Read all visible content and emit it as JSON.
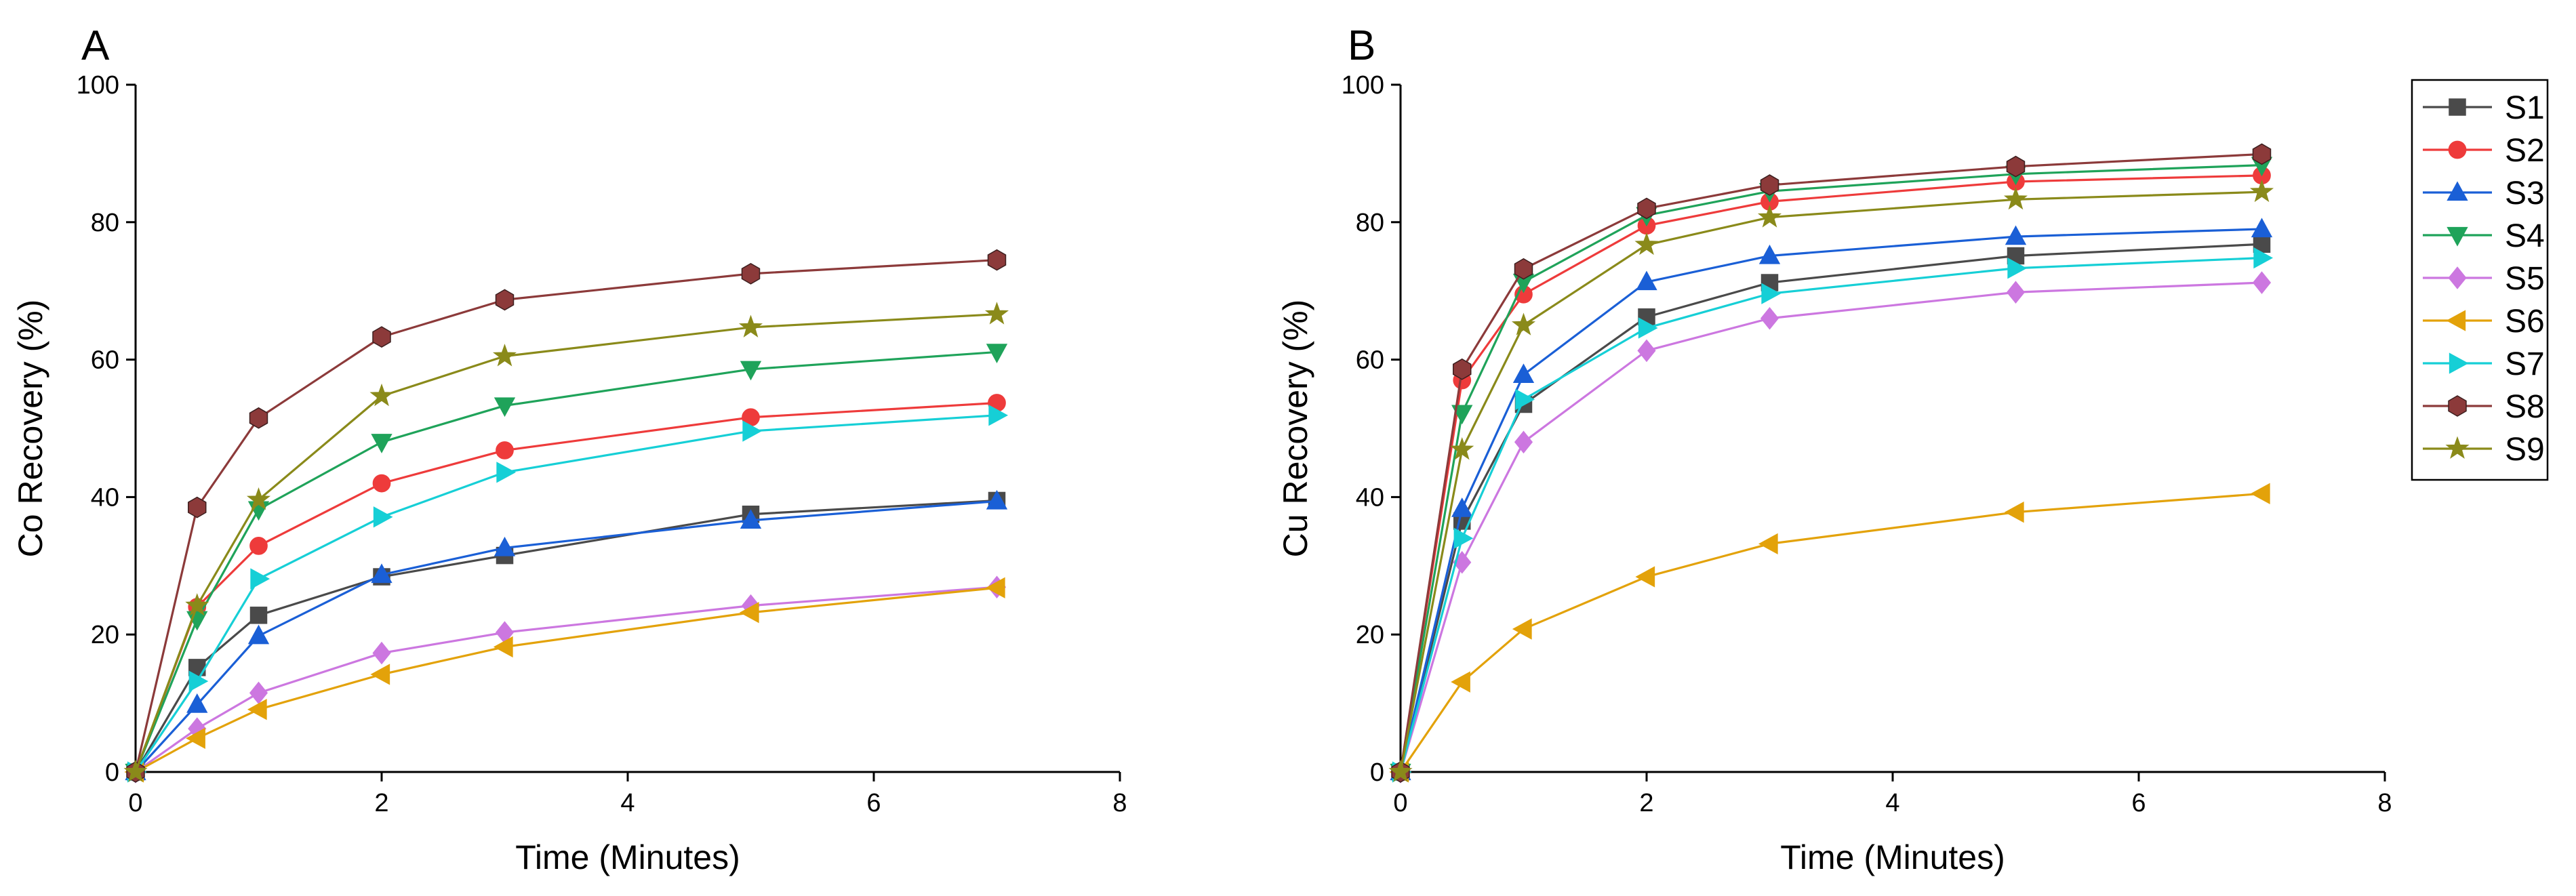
{
  "chart_data": [
    {
      "type": "line",
      "panel_label": "A",
      "xlabel": "Time (Minutes)",
      "ylabel": "Co Recovery (%)",
      "xlim": [
        0,
        8
      ],
      "ylim": [
        0,
        100
      ],
      "xticks": [
        0,
        2,
        4,
        6,
        8
      ],
      "yticks": [
        0,
        20,
        40,
        60,
        80,
        100
      ],
      "x": [
        0,
        0.5,
        1,
        2,
        3,
        5,
        7
      ],
      "series": [
        {
          "name": "S1",
          "values": [
            0,
            15.2,
            22.8,
            28.4,
            31.5,
            37.5,
            39.5
          ]
        },
        {
          "name": "S2",
          "values": [
            0,
            24.0,
            32.9,
            42.0,
            46.8,
            51.6,
            53.7
          ]
        },
        {
          "name": "S3",
          "values": [
            0,
            9.8,
            19.8,
            28.7,
            32.6,
            36.6,
            39.4
          ]
        },
        {
          "name": "S4",
          "values": [
            0,
            22.2,
            38.2,
            48.0,
            53.3,
            58.6,
            61.1
          ]
        },
        {
          "name": "S5",
          "values": [
            0,
            6.3,
            11.5,
            17.3,
            20.3,
            24.2,
            26.9
          ]
        },
        {
          "name": "S6",
          "values": [
            0,
            4.9,
            9.1,
            14.2,
            18.2,
            23.2,
            26.8
          ]
        },
        {
          "name": "S7",
          "values": [
            0,
            13.2,
            28.1,
            37.1,
            43.6,
            49.6,
            51.9
          ]
        },
        {
          "name": "S8",
          "values": [
            0,
            38.5,
            51.5,
            63.3,
            68.7,
            72.5,
            74.5
          ]
        },
        {
          "name": "S9",
          "values": [
            0,
            24.2,
            39.6,
            54.7,
            60.5,
            64.7,
            66.6
          ]
        }
      ]
    },
    {
      "type": "line",
      "panel_label": "B",
      "xlabel": "Time (Minutes)",
      "ylabel": "Cu Recovery (%)",
      "xlim": [
        0,
        8
      ],
      "ylim": [
        0,
        100
      ],
      "xticks": [
        0,
        2,
        4,
        6,
        8
      ],
      "yticks": [
        0,
        20,
        40,
        60,
        80,
        100
      ],
      "x": [
        0,
        0.5,
        1,
        2,
        3,
        5,
        7
      ],
      "legend_position": "outside-right",
      "series": [
        {
          "name": "S1",
          "values": [
            0,
            36.5,
            53.5,
            66.2,
            71.2,
            75.1,
            76.8
          ]
        },
        {
          "name": "S2",
          "values": [
            0,
            57.0,
            69.5,
            79.5,
            83.0,
            85.9,
            86.8
          ]
        },
        {
          "name": "S3",
          "values": [
            0,
            38.3,
            57.8,
            71.3,
            75.1,
            77.9,
            79.0
          ]
        },
        {
          "name": "S4",
          "values": [
            0,
            52.2,
            71.3,
            81.0,
            84.5,
            87.0,
            88.3
          ]
        },
        {
          "name": "S5",
          "values": [
            0,
            30.5,
            48.0,
            61.3,
            66.0,
            69.8,
            71.2
          ]
        },
        {
          "name": "S6",
          "values": [
            0,
            13.1,
            20.8,
            28.4,
            33.2,
            37.8,
            40.5
          ]
        },
        {
          "name": "S7",
          "values": [
            0,
            34.0,
            54.2,
            64.6,
            69.6,
            73.3,
            74.8
          ]
        },
        {
          "name": "S8",
          "values": [
            0,
            58.6,
            73.2,
            82.0,
            85.4,
            88.1,
            89.9
          ]
        },
        {
          "name": "S9",
          "values": [
            0,
            46.9,
            65.0,
            76.7,
            80.7,
            83.3,
            84.4
          ]
        }
      ]
    }
  ],
  "series_styles": [
    {
      "name": "S1",
      "color": "#4a4a4a",
      "marker": "square"
    },
    {
      "name": "S2",
      "color": "#ee3b3b",
      "marker": "circle"
    },
    {
      "name": "S3",
      "color": "#1a5fd6",
      "marker": "triangle-up"
    },
    {
      "name": "S4",
      "color": "#1fa35a",
      "marker": "triangle-down"
    },
    {
      "name": "S5",
      "color": "#cc77e0",
      "marker": "diamond"
    },
    {
      "name": "S6",
      "color": "#e3a20a",
      "marker": "triangle-left"
    },
    {
      "name": "S7",
      "color": "#16cfd6",
      "marker": "triangle-right"
    },
    {
      "name": "S8",
      "color": "#8c3a3a",
      "marker": "hexagon"
    },
    {
      "name": "S9",
      "color": "#8a8a1a",
      "marker": "star"
    }
  ]
}
